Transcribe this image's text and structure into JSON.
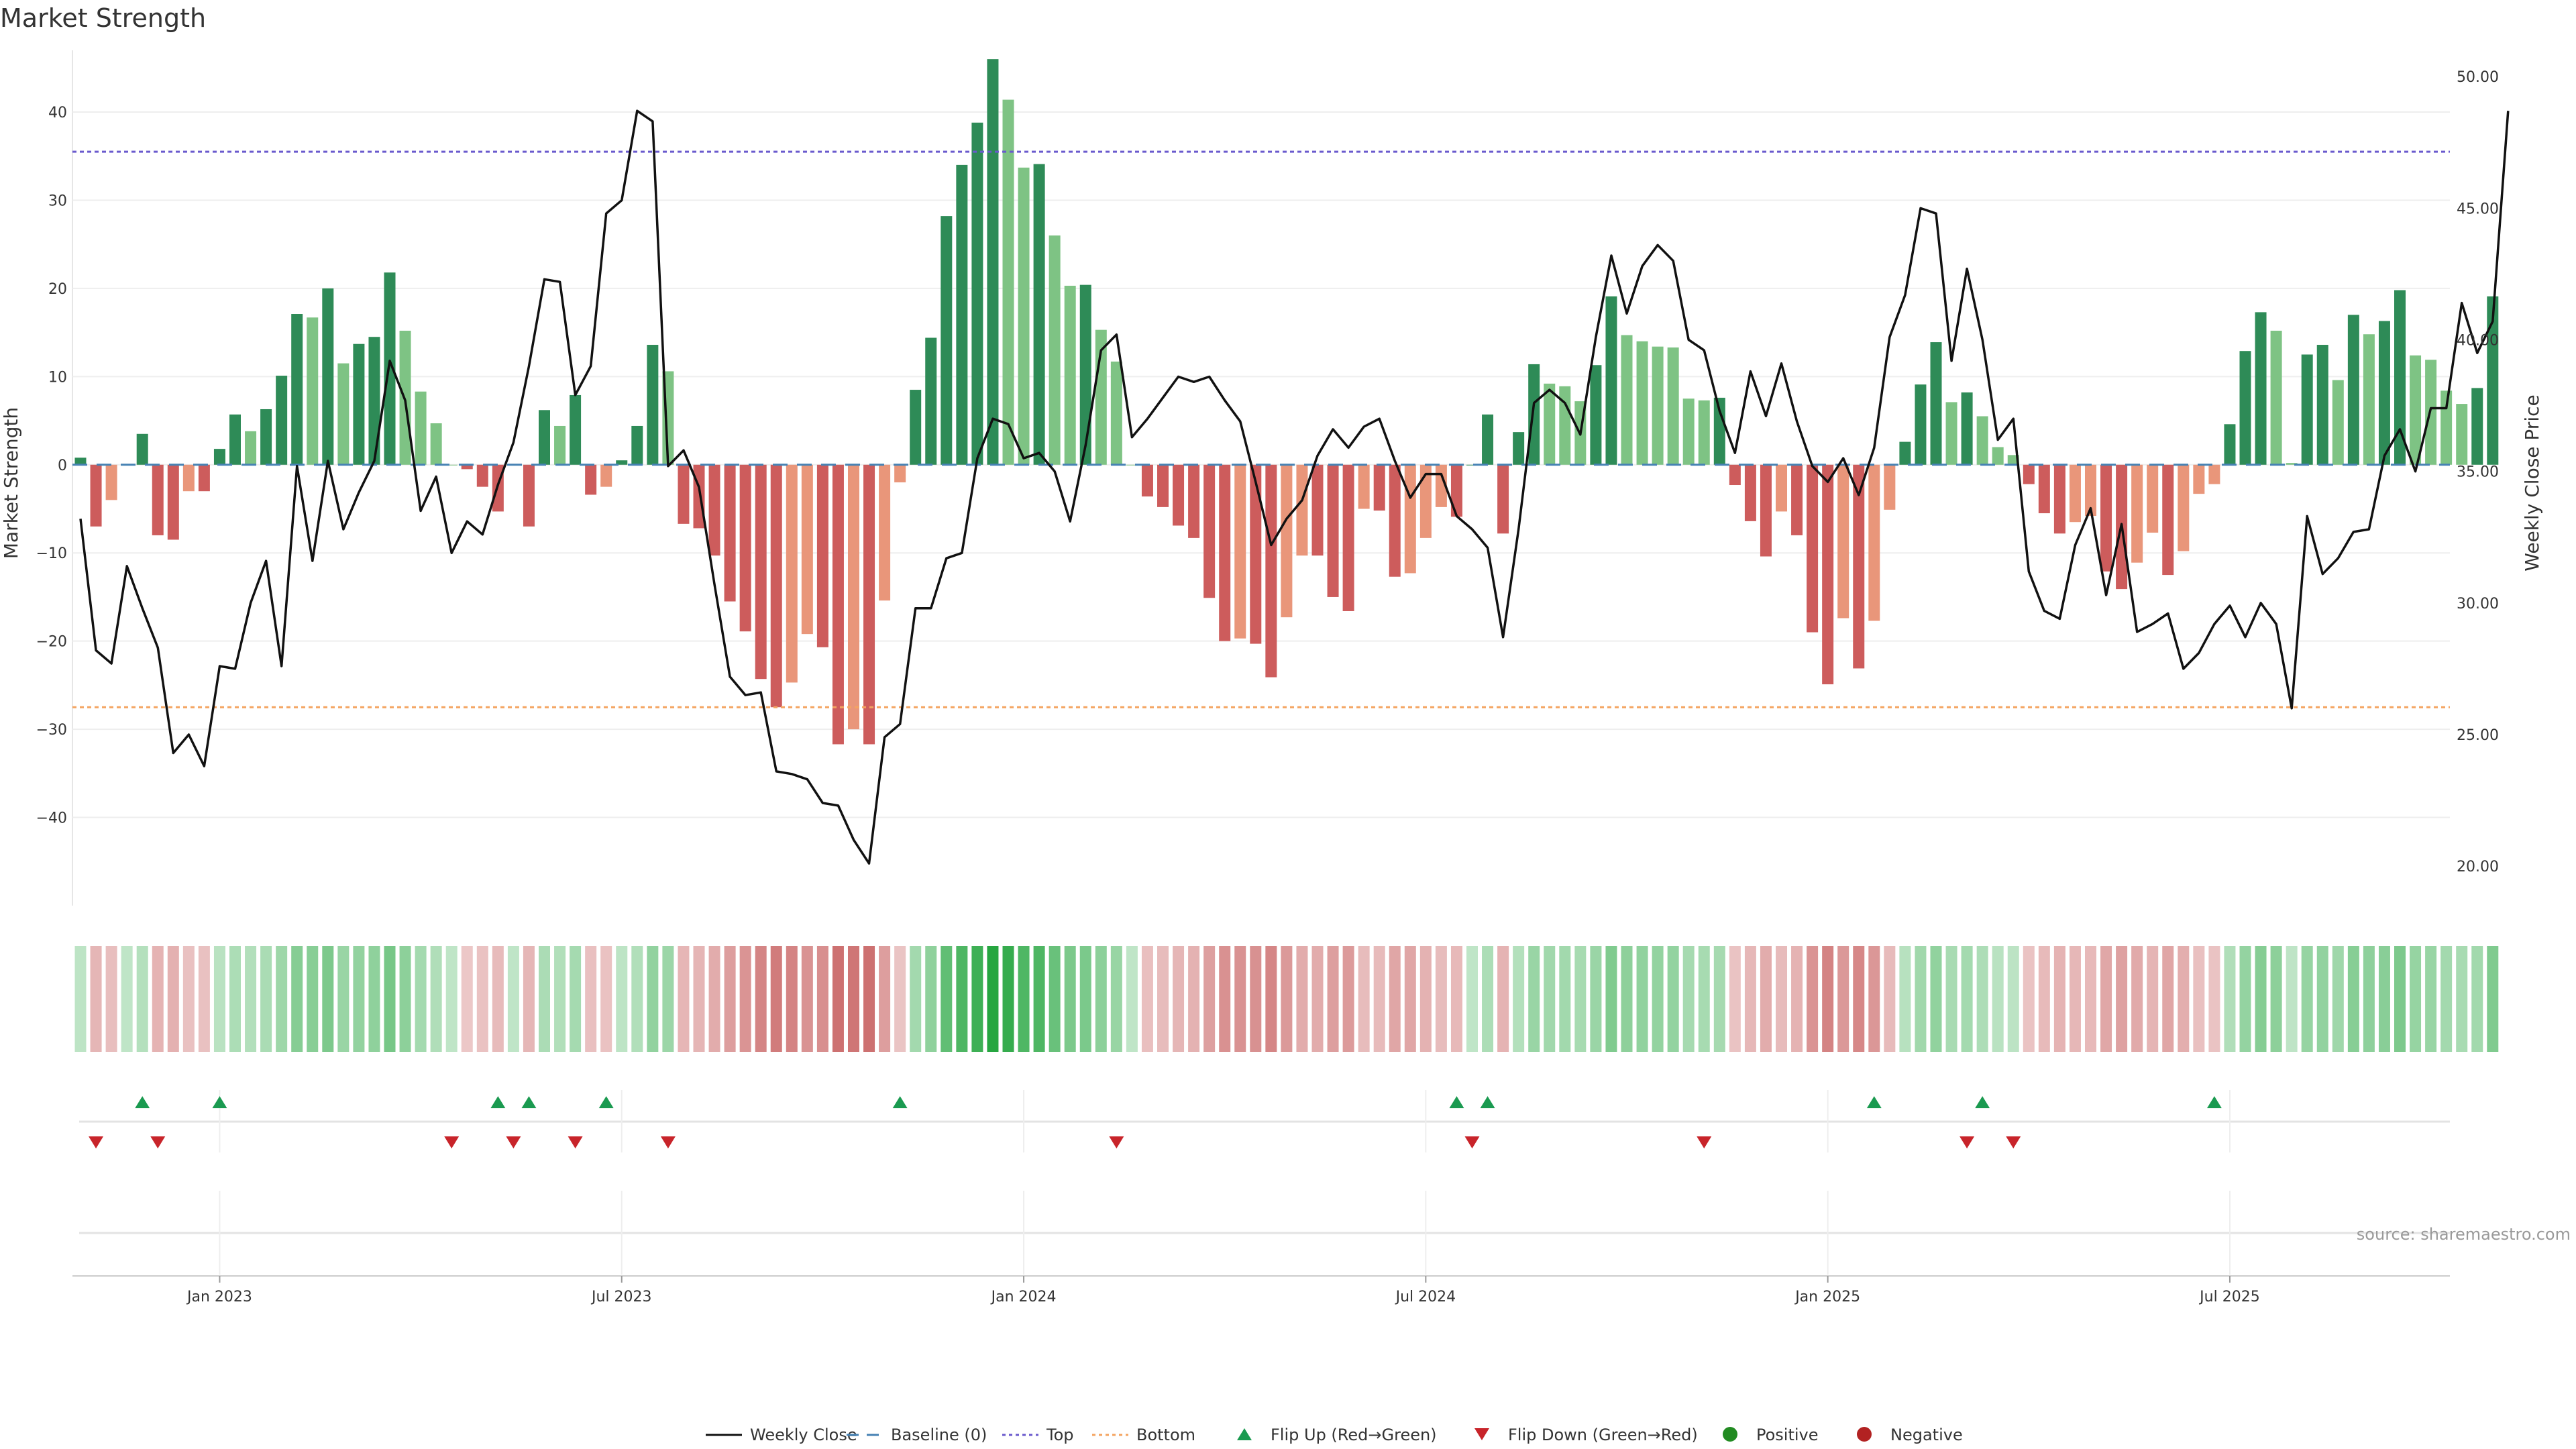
{
  "chart_data": {
    "type": "bar+line",
    "title": "Market Strength",
    "ylabel_left": "Market Strength",
    "ylabel_right": "Weekly Close Price",
    "yticks_left": [
      "40",
      "30",
      "20",
      "10",
      "0",
      "−10",
      "−20",
      "−30",
      "−40"
    ],
    "yticks_right": [
      "50.00",
      "45.00",
      "40.00",
      "35.00",
      "30.00",
      "25.00",
      "20.00"
    ],
    "ylim_left": [
      -50,
      47
    ],
    "ylim_right": [
      18.5,
      51
    ],
    "top_level": 35.5,
    "bottom_level": -27.5,
    "baseline": 0,
    "x_start": "2022-10-30",
    "x_end": "2025-10-05",
    "date_ticks": [
      {
        "label": "Jan 2023",
        "index": 9
      },
      {
        "label": "Jul 2023",
        "index": 35
      },
      {
        "label": "Jan 2024",
        "index": 61
      },
      {
        "label": "Jul 2024",
        "index": 87
      },
      {
        "label": "Jan 2025",
        "index": 113
      },
      {
        "label": "Jul 2025",
        "index": 139
      }
    ],
    "strength": [
      0.8,
      -7,
      -4,
      0,
      3.5,
      -8,
      -8.5,
      -3,
      -3,
      1.8,
      5.7,
      3.8,
      6.3,
      10.1,
      17.1,
      16.7,
      20,
      11.5,
      13.7,
      14.5,
      21.8,
      15.2,
      8.3,
      4.7,
      0,
      -0.5,
      -2.5,
      -5.3,
      0,
      -7,
      6.2,
      4.4,
      7.9,
      -3.4,
      -2.5,
      0.5,
      4.4,
      13.6,
      10.6,
      -6.7,
      -7.2,
      -10.3,
      -15.5,
      -18.9,
      -24.3,
      -27.5,
      -24.7,
      -19.2,
      -20.7,
      -31.7,
      -30,
      -31.7,
      -15.4,
      -2,
      8.5,
      14.4,
      28.2,
      34,
      38.8,
      46,
      41.4,
      33.7,
      34.1,
      26,
      20.3,
      20.4,
      15.3,
      11.7,
      0,
      -3.6,
      -4.8,
      -6.9,
      -8.3,
      -15.1,
      -20,
      -19.7,
      -20.3,
      -24.1,
      -17.3,
      -10.3,
      -10.3,
      -15,
      -16.6,
      -5,
      -5.2,
      -12.7,
      -12.3,
      -8.3,
      -4.8,
      -5.9,
      0,
      5.7,
      -7.8,
      3.7,
      11.4,
      9.2,
      8.9,
      7.2,
      11.3,
      19.1,
      14.7,
      14,
      13.4,
      13.3,
      7.5,
      7.3,
      7.6,
      -2.3,
      -6.4,
      -10.4,
      -5.3,
      -8,
      -19,
      -24.9,
      -17.4,
      -23.1,
      -17.7,
      -5.1,
      2.6,
      9.1,
      13.9,
      7.1,
      8.2,
      5.5,
      2,
      1.1,
      -2.2,
      -5.5,
      -7.8,
      -6.5,
      -5.8,
      -12.1,
      -14.1,
      -11.1,
      -7.7,
      -12.5,
      -9.8,
      -3.3,
      -2.2,
      4.6,
      12.9,
      17.3,
      15.2,
      0.2,
      12.5,
      13.6,
      9.6,
      17,
      14.8,
      16.3,
      19.8,
      12.4,
      11.9,
      8.4,
      6.9,
      8.7,
      19.1
    ],
    "weekly_close": [
      33.2,
      28.2,
      27.7,
      31.4,
      29.8,
      28.3,
      24.3,
      25,
      23.8,
      27.6,
      27.5,
      30,
      31.6,
      27.6,
      35.2,
      31.6,
      35.4,
      32.8,
      34.2,
      35.4,
      39.2,
      37.7,
      33.5,
      34.8,
      31.9,
      33.1,
      32.6,
      34.5,
      36.1,
      39,
      42.3,
      42.2,
      37.9,
      39,
      44.8,
      45.3,
      48.7,
      48.3,
      35.2,
      35.8,
      34.4,
      30.7,
      27.2,
      26.5,
      26.6,
      23.6,
      23.5,
      23.3,
      22.4,
      22.3,
      21,
      20.1,
      24.9,
      25.4,
      29.8,
      29.8,
      31.7,
      31.9,
      35.5,
      37,
      36.8,
      35.5,
      35.7,
      35,
      33.1,
      36,
      39.6,
      40.2,
      36.3,
      37,
      37.8,
      38.6,
      38.4,
      38.6,
      37.7,
      36.9,
      34.6,
      32.2,
      33.2,
      33.9,
      35.6,
      36.6,
      35.9,
      36.7,
      37,
      35.4,
      34,
      34.9,
      34.9,
      33.3,
      32.8,
      32.1,
      28.7,
      32.8,
      37.6,
      38.1,
      37.6,
      36.4,
      40.1,
      43.2,
      41,
      42.8,
      43.6,
      43,
      40,
      39.6,
      37.3,
      35.7,
      38.8,
      37.1,
      39.1,
      36.9,
      35.2,
      34.6,
      35.5,
      34.1,
      35.9,
      40.1,
      41.7,
      45,
      44.8,
      39.2,
      42.7,
      40,
      36.2,
      37,
      31.2,
      29.7,
      29.4,
      32.2,
      33.6,
      30.3,
      33,
      28.9,
      29.2,
      29.6,
      27.5,
      28.1,
      29.2,
      29.9,
      28.7,
      30,
      29.2,
      26,
      33.3,
      31.1,
      31.7,
      32.7,
      32.8,
      35.6,
      36.6,
      35,
      37.4,
      37.4,
      41.4,
      39.5,
      40.7,
      48.7
    ],
    "flip_up_indices": [
      4,
      9,
      27,
      29,
      34,
      53,
      89,
      91,
      116,
      123,
      138
    ],
    "flip_down_indices": [
      1,
      5,
      24,
      28,
      32,
      38,
      67,
      90,
      105,
      122,
      125
    ],
    "legend": [
      "Weekly Close",
      "Baseline (0)",
      "Top",
      "Bottom",
      "Flip Up (Red→Green)",
      "Flip Down (Green→Red)",
      "Positive",
      "Negative"
    ],
    "source": "source: sharemaestro.com",
    "colors": {
      "strong_pos": "#2e8b57",
      "weak_pos": "#7ec384",
      "strong_neg": "#cd5c5c",
      "weak_neg": "#e9967a",
      "line": "#111111",
      "top": "#6a5acd",
      "bottom": "#f4a460",
      "baseline": "#4682b4",
      "up_marker": "#1a9a50",
      "down_marker": "#c8242a",
      "positive_dot": "#228b22",
      "negative_dot": "#b22222"
    }
  }
}
